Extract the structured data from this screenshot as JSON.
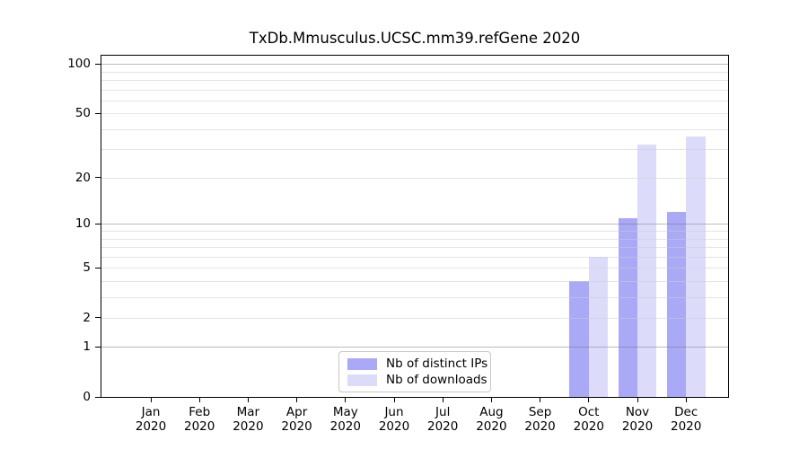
{
  "chart_data": {
    "type": "bar",
    "title": "TxDb.Mmusculus.UCSC.mm39.refGene 2020",
    "categories": [
      "Jan 2020",
      "Feb 2020",
      "Mar 2020",
      "Apr 2020",
      "May 2020",
      "Jun 2020",
      "Jul 2020",
      "Aug 2020",
      "Sep 2020",
      "Oct 2020",
      "Nov 2020",
      "Dec 2020"
    ],
    "month_labels": [
      "Jan",
      "Feb",
      "Mar",
      "Apr",
      "May",
      "Jun",
      "Jul",
      "Aug",
      "Sep",
      "Oct",
      "Nov",
      "Dec"
    ],
    "year_label": "2020",
    "series": [
      {
        "name": "Nb of distinct IPs",
        "color": "#a9a9f5",
        "values": [
          0,
          0,
          0,
          0,
          0,
          0,
          0,
          0,
          0,
          4,
          11,
          12
        ]
      },
      {
        "name": "Nb of downloads",
        "color": "#dcdcfa",
        "values": [
          0,
          0,
          0,
          0,
          0,
          0,
          0,
          0,
          0,
          6,
          32,
          36
        ]
      }
    ],
    "yscale": "log1p",
    "ylim": [
      0,
      115
    ],
    "yticks": [
      0,
      1,
      2,
      5,
      10,
      20,
      50,
      100
    ],
    "ytick_labels": [
      "0",
      "1",
      "2",
      "5",
      "10",
      "20",
      "50",
      "100"
    ],
    "major_gridlines": [
      1,
      10,
      100
    ],
    "minor_gridlines": [
      2,
      3,
      4,
      5,
      6,
      7,
      8,
      9,
      20,
      30,
      40,
      50,
      60,
      70,
      80,
      90
    ],
    "grid": "horizontal",
    "legend": {
      "entries": [
        "Nb of distinct IPs",
        "Nb of downloads"
      ],
      "position": "lower-center"
    },
    "background": "#ffffff",
    "axis_color": "#000000",
    "grid_major_color": "#bbbbbb",
    "grid_minor_color": "#e3e3e3"
  }
}
